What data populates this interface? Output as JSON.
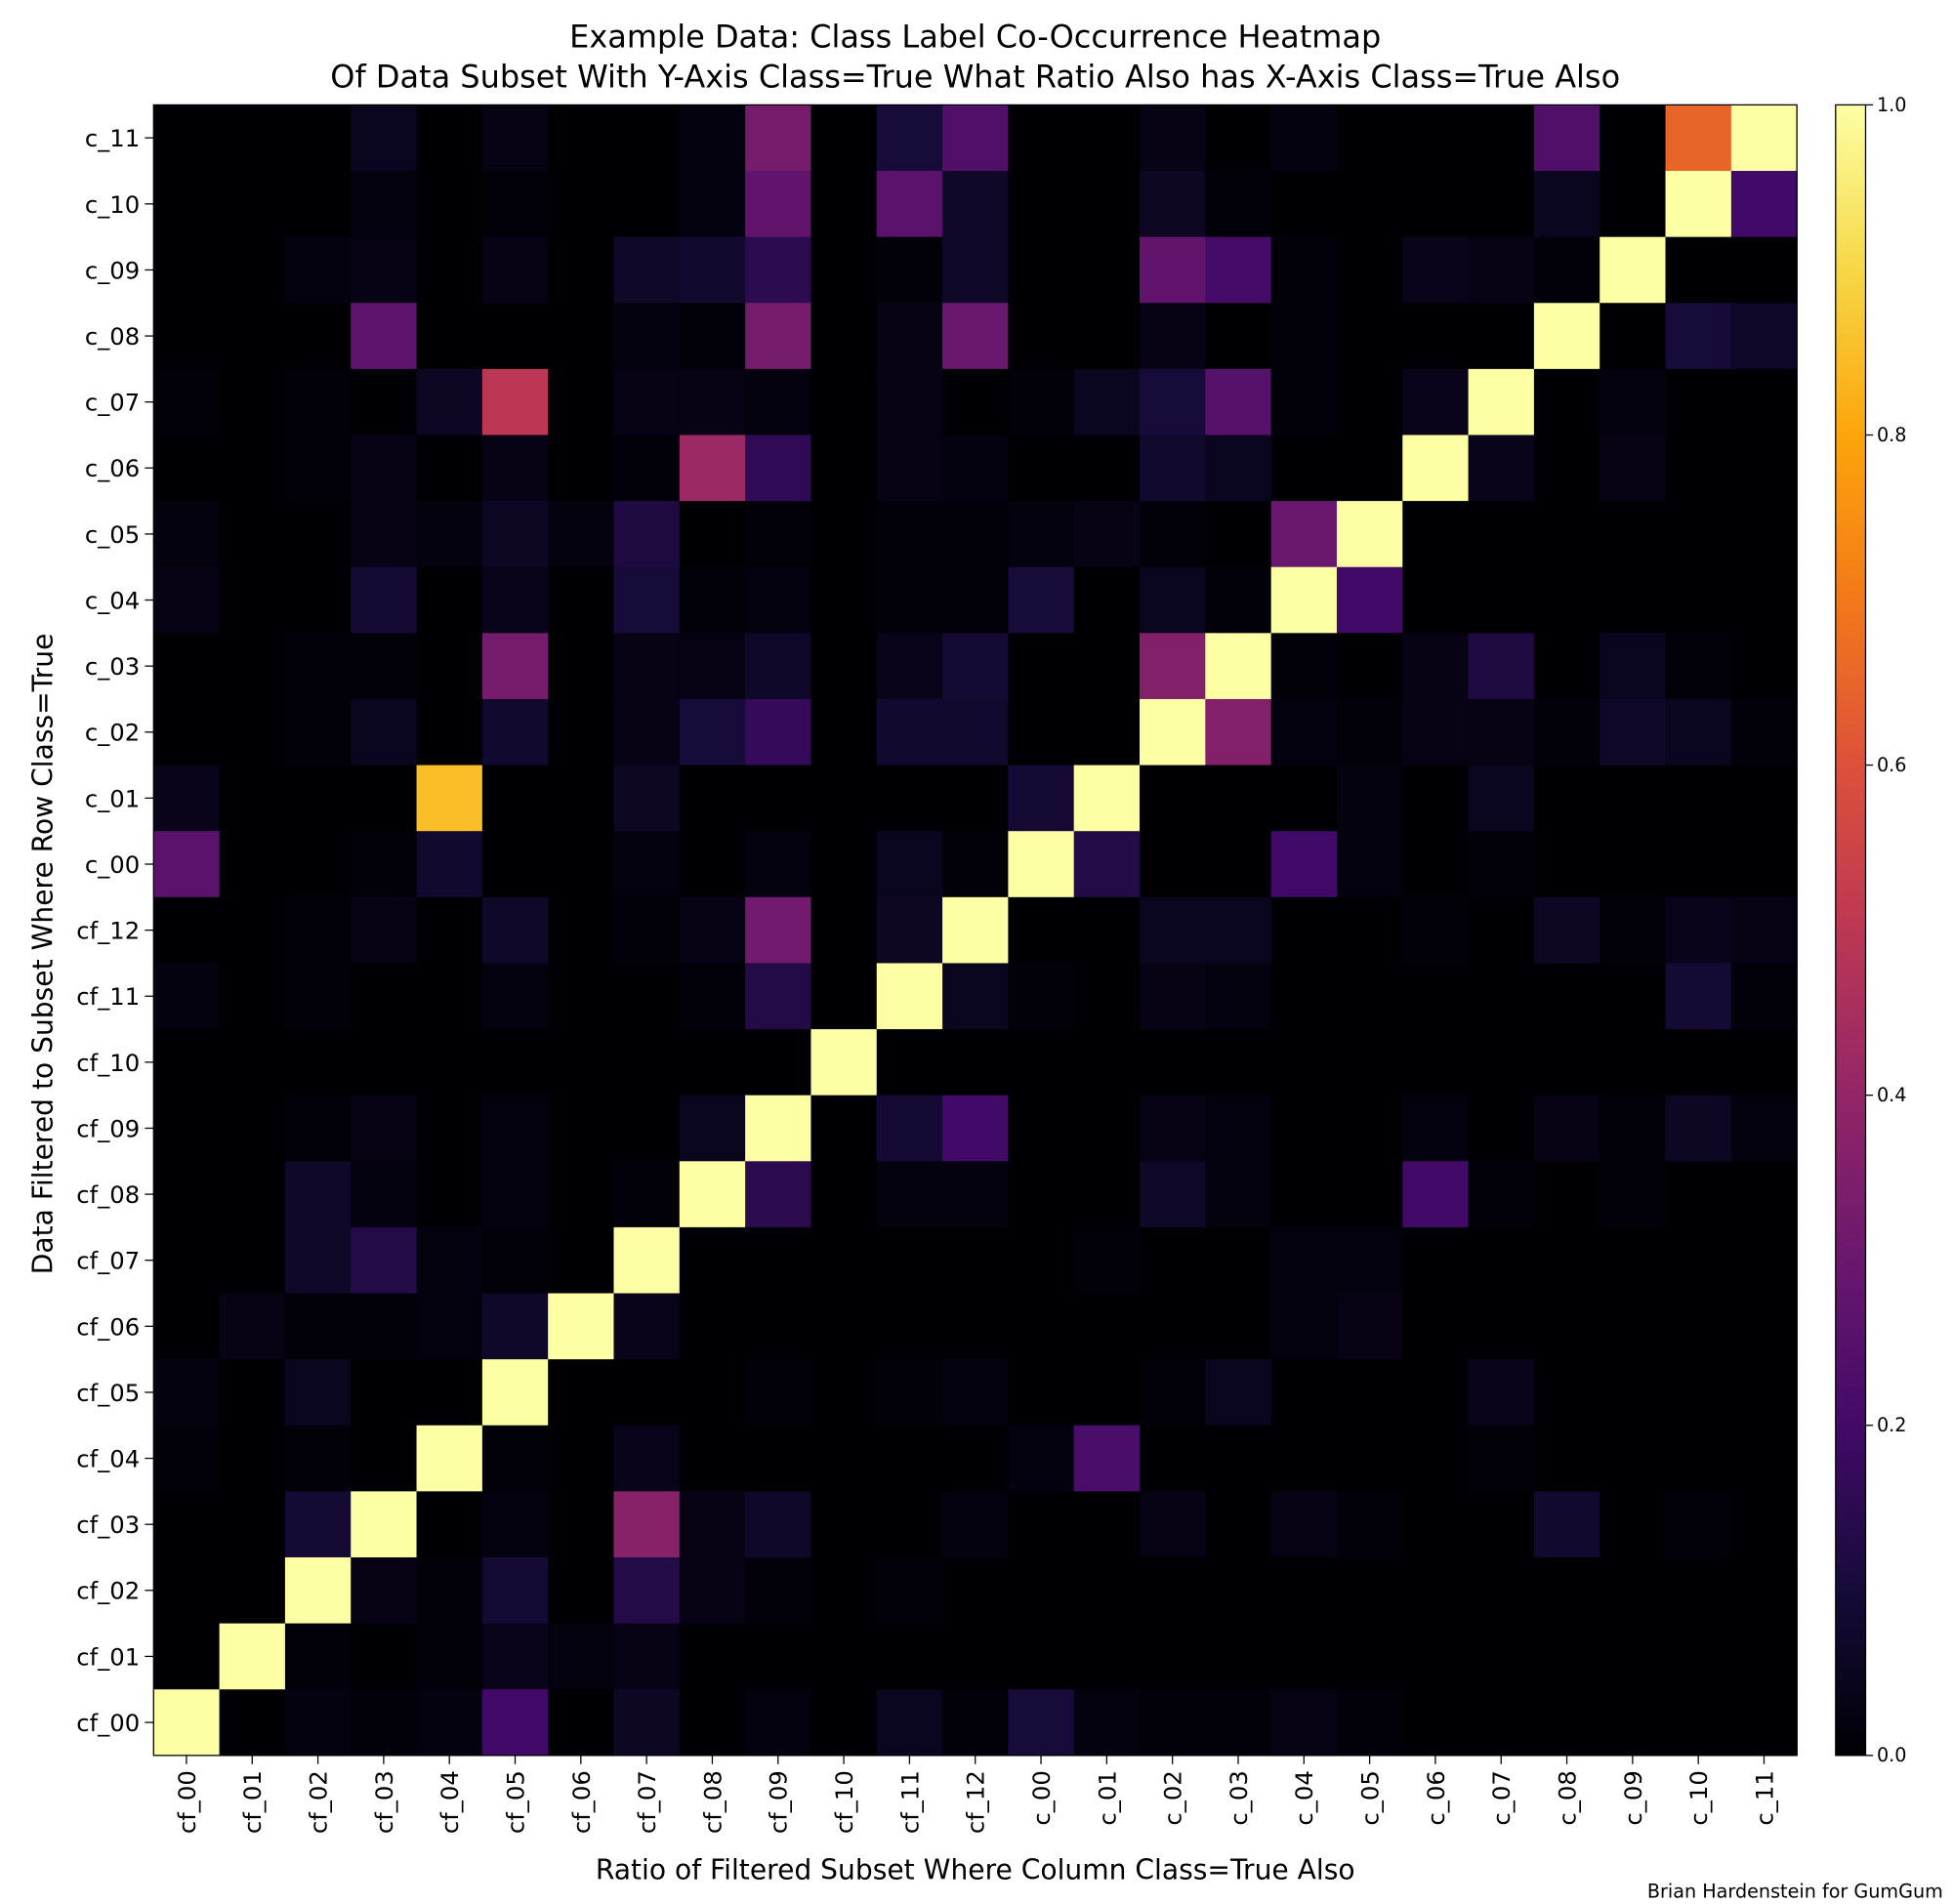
{
  "chart_data": {
    "type": "heatmap",
    "title": "Example Data: Class Label Co-Occurrence Heatmap",
    "subtitle": "Of Data Subset With Y-Axis Class=True What Ratio Also has X-Axis Class=True Also",
    "xlabel": "Ratio of Filtered Subset Where Column Class=True Also",
    "ylabel": "Data Filtered to Subset Where Row Class=True",
    "credit": "Brian Hardenstein for GumGum",
    "colormap": "inferno",
    "value_range": [
      0,
      1
    ],
    "colorbar_ticks": [
      "0.0",
      "0.2",
      "0.4",
      "0.6",
      "0.8",
      "1.0"
    ],
    "x_categories": [
      "cf_00",
      "cf_01",
      "cf_02",
      "cf_03",
      "cf_04",
      "cf_05",
      "cf_06",
      "cf_07",
      "cf_08",
      "cf_09",
      "cf_10",
      "cf_11",
      "cf_12",
      "c_00",
      "c_01",
      "c_02",
      "c_03",
      "c_04",
      "c_05",
      "c_06",
      "c_07",
      "c_08",
      "c_09",
      "c_10",
      "c_11"
    ],
    "y_categories_top_to_bottom": [
      "c_11",
      "c_10",
      "c_09",
      "c_08",
      "c_07",
      "c_06",
      "c_05",
      "c_04",
      "c_03",
      "c_02",
      "c_01",
      "c_00",
      "cf_12",
      "cf_11",
      "cf_10",
      "cf_09",
      "cf_08",
      "cf_07",
      "cf_06",
      "cf_05",
      "cf_04",
      "cf_03",
      "cf_02",
      "cf_01",
      "cf_00"
    ],
    "values": [
      [
        0,
        0,
        0,
        0.05,
        0,
        0.03,
        0,
        0,
        0.02,
        0.33,
        0,
        0.1,
        0.24,
        0,
        0,
        0.03,
        0,
        0.02,
        0,
        0,
        0,
        0.24,
        0,
        0.65,
        1.0
      ],
      [
        0,
        0,
        0,
        0.02,
        0,
        0.01,
        0,
        0,
        0.02,
        0.28,
        0,
        0.26,
        0.07,
        0,
        0,
        0.06,
        0.01,
        0,
        0,
        0,
        0,
        0.05,
        0,
        1.0,
        0.2
      ],
      [
        0,
        0,
        0.02,
        0.03,
        0,
        0.03,
        0,
        0.07,
        0.08,
        0.15,
        0,
        0.01,
        0.07,
        0,
        0,
        0.28,
        0.21,
        0.01,
        0,
        0.04,
        0.03,
        0.01,
        1.0,
        0,
        0
      ],
      [
        0,
        0,
        0,
        0.27,
        0,
        0,
        0,
        0.02,
        0.01,
        0.33,
        0,
        0.03,
        0.3,
        0,
        0,
        0.03,
        0,
        0.01,
        0,
        0,
        0,
        1.0,
        0,
        0.1,
        0.07
      ],
      [
        0.01,
        0,
        0.01,
        0,
        0.06,
        0.5,
        0,
        0.03,
        0.03,
        0.02,
        0,
        0.03,
        0,
        0.01,
        0.05,
        0.1,
        0.25,
        0.01,
        0,
        0.04,
        1.0,
        0,
        0.02,
        0,
        0
      ],
      [
        0,
        0,
        0.01,
        0.03,
        0,
        0.03,
        0,
        0.01,
        0.42,
        0.16,
        0,
        0.03,
        0.02,
        0,
        0,
        0.08,
        0.05,
        0,
        0,
        1.0,
        0.04,
        0,
        0.03,
        0,
        0
      ],
      [
        0.02,
        0,
        0,
        0.03,
        0.02,
        0.06,
        0.02,
        0.12,
        0,
        0.01,
        0,
        0.01,
        0.01,
        0.02,
        0.03,
        0.01,
        0,
        0.3,
        1.0,
        0,
        0,
        0,
        0,
        0,
        0
      ],
      [
        0.03,
        0,
        0,
        0.09,
        0,
        0.04,
        0,
        0.1,
        0.01,
        0.02,
        0,
        0.01,
        0.01,
        0.1,
        0,
        0.05,
        0.01,
        1.0,
        0.2,
        0,
        0,
        0,
        0,
        0,
        0
      ],
      [
        0,
        0,
        0.01,
        0.01,
        0,
        0.33,
        0,
        0.03,
        0.03,
        0.07,
        0,
        0.04,
        0.09,
        0,
        0,
        0.36,
        1.0,
        0.01,
        0,
        0.03,
        0.12,
        0,
        0.05,
        0.01,
        0
      ],
      [
        0,
        0,
        0.01,
        0.05,
        0,
        0.08,
        0,
        0.03,
        0.1,
        0.17,
        0,
        0.08,
        0.08,
        0,
        0,
        1.0,
        0.36,
        0.02,
        0.01,
        0.03,
        0.03,
        0.01,
        0.07,
        0.05,
        0.01
      ],
      [
        0.04,
        0,
        0,
        0,
        0.85,
        0,
        0,
        0.06,
        0,
        0,
        0,
        0,
        0,
        0.09,
        1.0,
        0,
        0,
        0,
        0.02,
        0,
        0.05,
        0,
        0,
        0,
        0
      ],
      [
        0.26,
        0,
        0,
        0.01,
        0.08,
        0,
        0,
        0.02,
        0,
        0.02,
        0,
        0.05,
        0.01,
        1.0,
        0.13,
        0,
        0,
        0.2,
        0.02,
        0,
        0.01,
        0,
        0,
        0,
        0
      ],
      [
        0,
        0,
        0.01,
        0.03,
        0,
        0.07,
        0,
        0.01,
        0.03,
        0.32,
        0,
        0.06,
        1.0,
        0,
        0,
        0.05,
        0.05,
        0,
        0,
        0.01,
        0,
        0.06,
        0.01,
        0.04,
        0.03
      ],
      [
        0.02,
        0,
        0.01,
        0,
        0,
        0.02,
        0,
        0,
        0.01,
        0.13,
        0,
        1.0,
        0.05,
        0.01,
        0,
        0.03,
        0.02,
        0,
        0,
        0,
        0,
        0,
        0,
        0.09,
        0.01
      ],
      [
        0,
        0,
        0,
        0,
        0,
        0,
        0,
        0,
        0,
        0,
        1.0,
        0,
        0,
        0,
        0,
        0,
        0,
        0,
        0,
        0,
        0,
        0,
        0,
        0,
        0
      ],
      [
        0,
        0,
        0.01,
        0.03,
        0,
        0.02,
        0,
        0,
        0.05,
        1.0,
        0,
        0.09,
        0.2,
        0,
        0,
        0.03,
        0.02,
        0,
        0,
        0.02,
        0,
        0.03,
        0.01,
        0.06,
        0.02
      ],
      [
        0,
        0,
        0.07,
        0.02,
        0,
        0.02,
        0,
        0.01,
        1.0,
        0.15,
        0,
        0.02,
        0.02,
        0,
        0,
        0.07,
        0.02,
        0,
        0,
        0.2,
        0.01,
        0,
        0.01,
        0,
        0
      ],
      [
        0,
        0,
        0.07,
        0.13,
        0.02,
        0.01,
        0,
        1.0,
        0,
        0,
        0,
        0,
        0,
        0,
        0.01,
        0,
        0,
        0.02,
        0.02,
        0,
        0,
        0,
        0,
        0,
        0
      ],
      [
        0,
        0.03,
        0.01,
        0.01,
        0.02,
        0.07,
        1.0,
        0.04,
        0,
        0,
        0,
        0,
        0,
        0,
        0,
        0,
        0,
        0.02,
        0.03,
        0,
        0,
        0,
        0,
        0,
        0
      ],
      [
        0.02,
        0,
        0.05,
        0,
        0,
        1.0,
        0,
        0,
        0,
        0.01,
        0,
        0.01,
        0.02,
        0,
        0,
        0.01,
        0.05,
        0,
        0,
        0,
        0.04,
        0,
        0,
        0,
        0
      ],
      [
        0.01,
        0,
        0.01,
        0,
        1.0,
        0.01,
        0,
        0.04,
        0,
        0,
        0,
        0,
        0,
        0.02,
        0.22,
        0,
        0,
        0,
        0,
        0,
        0.01,
        0,
        0,
        0,
        0
      ],
      [
        0,
        0,
        0.09,
        1.0,
        0,
        0.02,
        0,
        0.37,
        0.03,
        0.07,
        0,
        0,
        0.02,
        0,
        0,
        0.03,
        0,
        0.03,
        0.01,
        0,
        0,
        0.08,
        0,
        0.01,
        0
      ],
      [
        0,
        0,
        1.0,
        0.03,
        0.01,
        0.09,
        0,
        0.13,
        0.03,
        0.01,
        0,
        0.01,
        0,
        0,
        0,
        0,
        0,
        0,
        0,
        0,
        0,
        0,
        0,
        0,
        0
      ],
      [
        0,
        1.0,
        0.01,
        0,
        0.01,
        0.04,
        0.02,
        0.03,
        0,
        0,
        0,
        0,
        0,
        0,
        0,
        0,
        0,
        0,
        0,
        0,
        0,
        0,
        0,
        0,
        0
      ],
      [
        1.0,
        0,
        0.02,
        0.01,
        0.02,
        0.2,
        0,
        0.06,
        0,
        0.02,
        0,
        0.05,
        0.01,
        0.1,
        0.02,
        0.01,
        0.01,
        0.03,
        0.01,
        0,
        0,
        0,
        0,
        0,
        0
      ]
    ]
  }
}
